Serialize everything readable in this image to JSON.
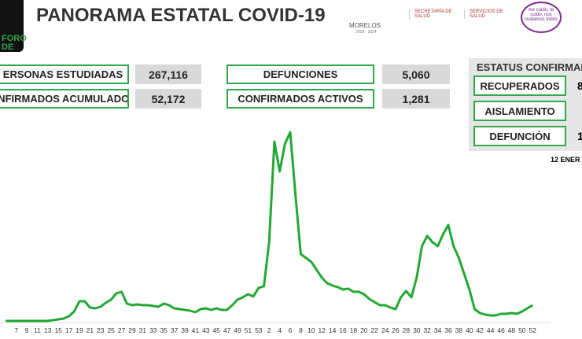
{
  "header": {
    "title": "PANORAMA ESTATAL COVID-19",
    "logo_text": [
      "FORO",
      "DE"
    ],
    "state": "MORELOS",
    "period": "2018 - 2024",
    "agency1": "SECRETARÍA DE SALUD",
    "agency2": "SERVICIOS DE SALUD",
    "slogan": "me cuido, te cuido, nos cuidamos todos"
  },
  "stats": [
    {
      "label": "ERSONAS ESTUDIADAS",
      "value": "267,116"
    },
    {
      "label": "ONFIRMADOS ACUMULADOS",
      "value": "52,172"
    },
    {
      "label": "DEFUNCIONES",
      "value": "5,060"
    },
    {
      "label": "CONFIRMADOS ACTIVOS",
      "value": "1,281"
    }
  ],
  "status": {
    "title": "ESTATUS CONFIRMAD",
    "items": [
      {
        "label": "RECUPERADOS",
        "value": "8"
      },
      {
        "label": "AISLAMIENTO",
        "value": ""
      },
      {
        "label": "DEFUNCIÓN",
        "value": "1"
      }
    ],
    "date": "12 ENER"
  },
  "chart_data": {
    "type": "line",
    "color": "#22a833",
    "ylim": [
      0,
      250
    ],
    "categories": [
      null,
      null,
      "7",
      null,
      "9",
      null,
      "11",
      null,
      "13",
      null,
      "15",
      null,
      "17",
      null,
      "19",
      null,
      "21",
      null,
      "23",
      null,
      "25",
      null,
      "27",
      null,
      "29",
      null,
      "31",
      null,
      "33",
      null,
      "35",
      null,
      "37",
      null,
      "39",
      null,
      "41",
      null,
      "43",
      null,
      "45",
      null,
      "47",
      null,
      "49",
      null,
      "51",
      null,
      "53",
      null,
      "2",
      null,
      "4",
      null,
      "6",
      null,
      "8",
      null,
      "10",
      null,
      "12",
      null,
      "14",
      null,
      "16",
      null,
      "18",
      null,
      "20",
      null,
      "22",
      null,
      "24",
      null,
      "26",
      null,
      "28",
      null,
      "30",
      null,
      "32",
      null,
      "34",
      null,
      "36",
      null,
      "38",
      null,
      "40",
      null,
      "42",
      null,
      "44",
      null,
      "46",
      null,
      "48",
      null,
      "50",
      null,
      "52"
    ],
    "values": [
      0,
      0,
      0,
      0,
      0,
      0,
      0,
      0,
      0,
      1,
      2,
      3,
      6,
      12,
      25,
      25,
      17,
      16,
      18,
      23,
      27,
      35,
      37,
      22,
      20,
      21,
      20,
      20,
      19,
      18,
      22,
      20,
      16,
      15,
      14,
      13,
      11,
      15,
      16,
      14,
      16,
      14,
      14,
      20,
      27,
      30,
      34,
      31,
      42,
      44,
      100,
      228,
      190,
      225,
      240,
      160,
      85,
      80,
      75,
      65,
      55,
      48,
      45,
      43,
      40,
      41,
      37,
      37,
      34,
      28,
      24,
      20,
      20,
      17,
      15,
      30,
      38,
      30,
      55,
      95,
      108,
      100,
      95,
      110,
      122,
      95,
      80,
      60,
      40,
      15,
      10,
      8,
      7,
      7,
      9,
      9,
      10,
      9,
      12,
      16,
      20
    ]
  }
}
